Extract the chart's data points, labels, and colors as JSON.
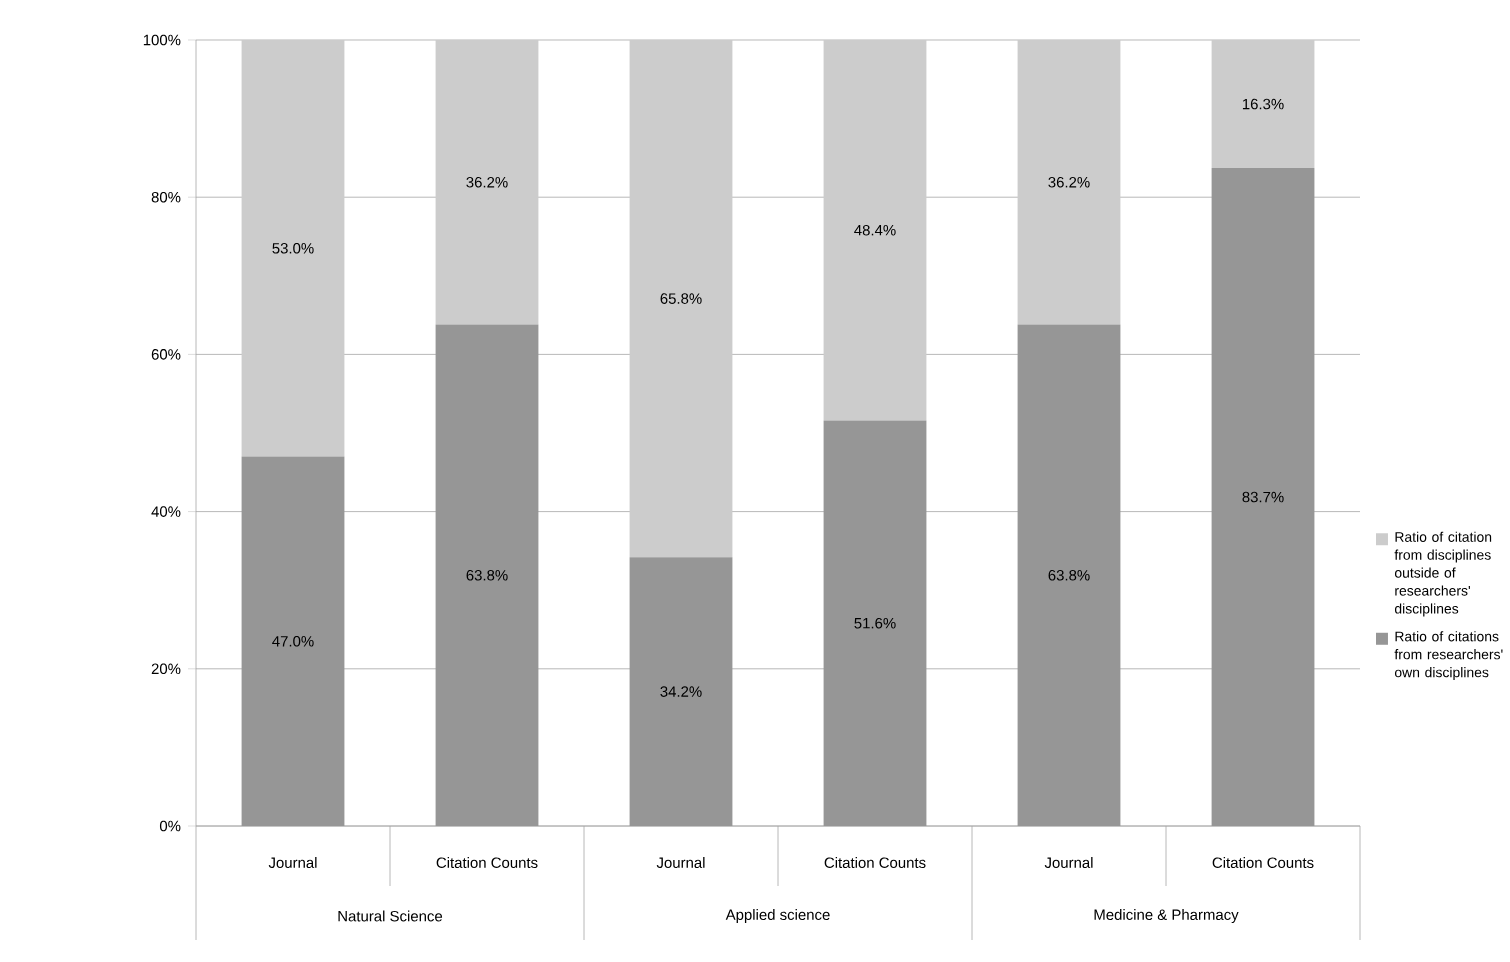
{
  "chart_data": {
    "type": "bar",
    "stacked": true,
    "categories": [
      "Journal",
      "Citation Counts",
      "Journal",
      "Citation Counts",
      "Journal",
      "Citation Counts"
    ],
    "series": [
      {
        "name": "Ratio of citations from researchers' own disciplines",
        "color": "#969696",
        "values": [
          47.0,
          63.8,
          34.2,
          51.6,
          63.8,
          83.7
        ],
        "value_labels": [
          "47.0%",
          "63.8%",
          "34.2%",
          "51.6%",
          "63.8%",
          "83.7%"
        ]
      },
      {
        "name": "Ratio of citation from disciplines outside of researchers' disciplines",
        "color": "#cccccc",
        "values": [
          53.0,
          36.2,
          65.8,
          48.4,
          36.2,
          16.3
        ],
        "value_labels": [
          "53.0%",
          "36.2%",
          "65.8%",
          "48.4%",
          "36.2%",
          "16.3%"
        ]
      }
    ],
    "annotations": [
      "Natural Science",
      "Applied science",
      "Medicine & Pharmacy"
    ],
    "ylim": [
      0,
      100
    ],
    "yticks": [
      {
        "value": 0,
        "label": "0%"
      },
      {
        "value": 20,
        "label": "20%"
      },
      {
        "value": 40,
        "label": "40%"
      },
      {
        "value": 60,
        "label": "60%"
      },
      {
        "value": 80,
        "label": "80%"
      },
      {
        "value": 100,
        "label": "100%"
      }
    ],
    "grid": "y",
    "legend": "right"
  }
}
